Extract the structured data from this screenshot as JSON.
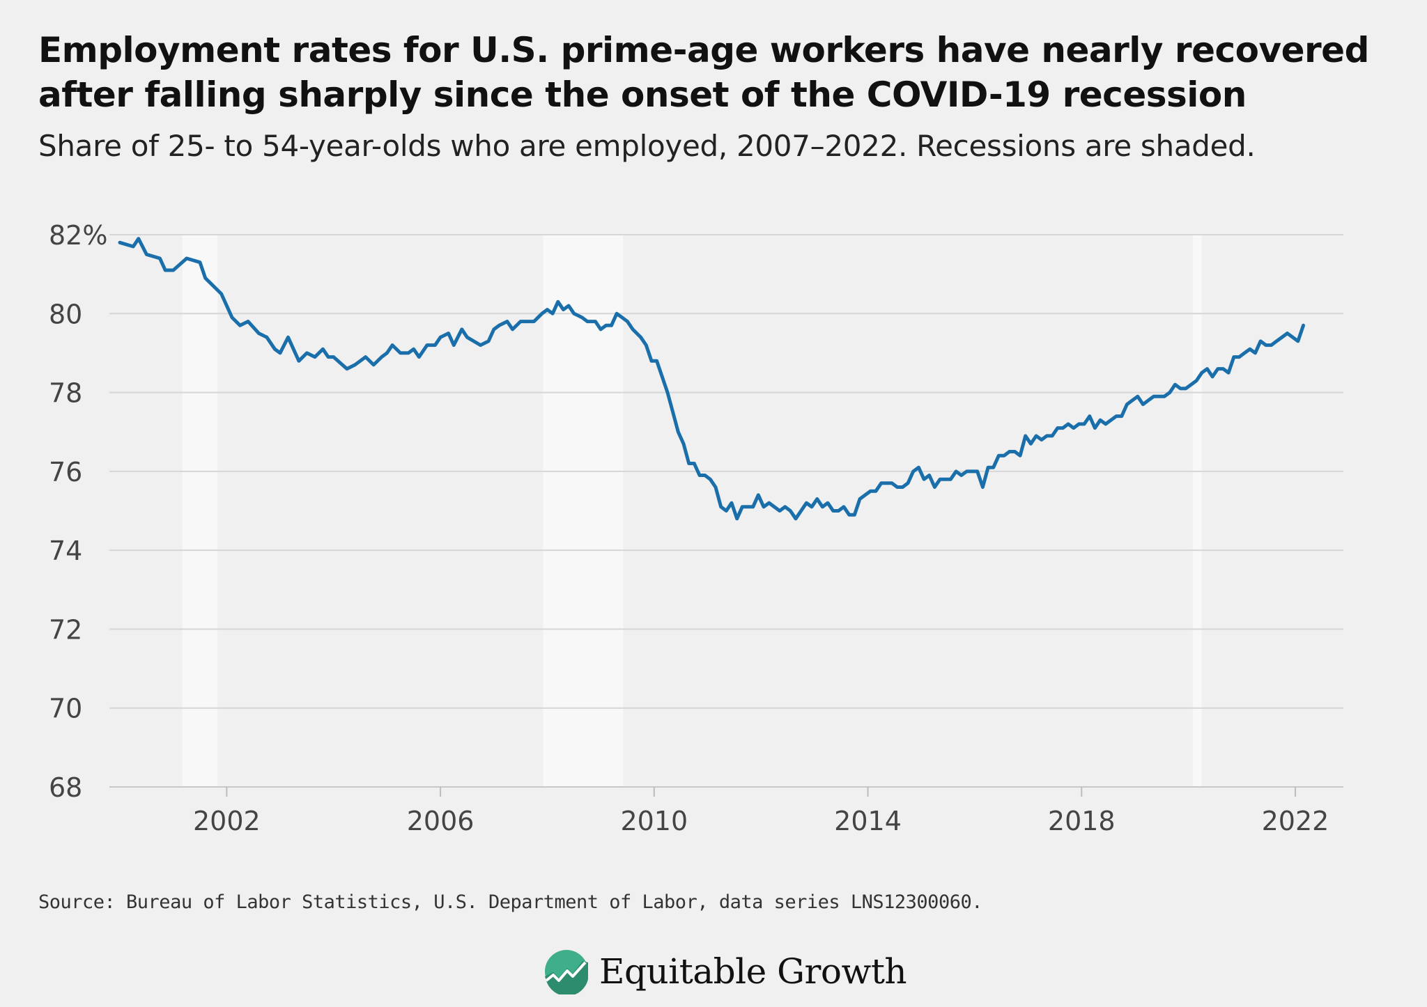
{
  "header": {
    "title": "Employment rates for U.S. prime-age workers have nearly recovered after falling sharply since the onset of the COVID-19 recession",
    "subtitle": "Share of 25- to 54-year-olds who are employed, 2007–2022. Recessions are shaded."
  },
  "footer": {
    "source": "Source: Bureau of Labor Statistics, U.S. Department of Labor, data series LNS12300060.",
    "logo_text": "Equitable Growth"
  },
  "colors": {
    "line": "#1a6fab",
    "grid": "#d6d6d6",
    "recession": "#f8f8f8",
    "background": "#f0f0f0",
    "tick_text": "#444444",
    "logo_green": "#3fae8a"
  },
  "chart_data": {
    "type": "line",
    "xlim": [
      2000.0,
      2022.9
    ],
    "ylim": [
      68,
      82
    ],
    "y_ticks": [
      {
        "value": 82,
        "label": "82%"
      },
      {
        "value": 80,
        "label": "80"
      },
      {
        "value": 78,
        "label": "78"
      },
      {
        "value": 76,
        "label": "76"
      },
      {
        "value": 74,
        "label": "74"
      },
      {
        "value": 72,
        "label": "72"
      },
      {
        "value": 70,
        "label": "70"
      },
      {
        "value": 68,
        "label": "68"
      }
    ],
    "x_ticks": [
      {
        "value": 2002,
        "label": "2002"
      },
      {
        "value": 2006,
        "label": "2006"
      },
      {
        "value": 2010,
        "label": "2010"
      },
      {
        "value": 2014,
        "label": "2014"
      },
      {
        "value": 2018,
        "label": "2018"
      },
      {
        "value": 2022,
        "label": "2022"
      }
    ],
    "grid": true,
    "recessions": [
      {
        "start": 2001.17,
        "end": 2001.83
      },
      {
        "start": 2007.92,
        "end": 2009.42
      },
      {
        "start": 2020.08,
        "end": 2020.25
      }
    ],
    "series": [
      {
        "points": [
          [
            2000.0,
            81.8
          ],
          [
            2000.25,
            81.7
          ],
          [
            2000.35,
            81.9
          ],
          [
            2000.5,
            81.5
          ],
          [
            2000.75,
            81.4
          ],
          [
            2000.85,
            81.1
          ],
          [
            2001.0,
            81.1
          ],
          [
            2001.25,
            81.4
          ],
          [
            2001.5,
            81.3
          ],
          [
            2001.6,
            80.9
          ],
          [
            2001.9,
            80.5
          ],
          [
            2002.0,
            80.2
          ],
          [
            2002.1,
            79.9
          ],
          [
            2002.25,
            79.7
          ],
          [
            2002.4,
            79.8
          ],
          [
            2002.6,
            79.5
          ],
          [
            2002.75,
            79.4
          ],
          [
            2002.9,
            79.1
          ],
          [
            2003.0,
            79.0
          ],
          [
            2003.15,
            79.4
          ],
          [
            2003.25,
            79.1
          ],
          [
            2003.35,
            78.8
          ],
          [
            2003.5,
            79.0
          ],
          [
            2003.65,
            78.9
          ],
          [
            2003.8,
            79.1
          ],
          [
            2003.9,
            78.9
          ],
          [
            2004.0,
            78.9
          ],
          [
            2004.25,
            78.6
          ],
          [
            2004.4,
            78.7
          ],
          [
            2004.6,
            78.9
          ],
          [
            2004.75,
            78.7
          ],
          [
            2004.9,
            78.9
          ],
          [
            2005.0,
            79.0
          ],
          [
            2005.1,
            79.2
          ],
          [
            2005.25,
            79.0
          ],
          [
            2005.4,
            79.0
          ],
          [
            2005.5,
            79.1
          ],
          [
            2005.6,
            78.9
          ],
          [
            2005.75,
            79.2
          ],
          [
            2005.9,
            79.2
          ],
          [
            2006.0,
            79.4
          ],
          [
            2006.15,
            79.5
          ],
          [
            2006.25,
            79.2
          ],
          [
            2006.4,
            79.6
          ],
          [
            2006.5,
            79.4
          ],
          [
            2006.75,
            79.2
          ],
          [
            2006.9,
            79.3
          ],
          [
            2007.0,
            79.6
          ],
          [
            2007.1,
            79.7
          ],
          [
            2007.25,
            79.8
          ],
          [
            2007.35,
            79.6
          ],
          [
            2007.5,
            79.8
          ],
          [
            2007.75,
            79.8
          ],
          [
            2007.9,
            80.0
          ],
          [
            2008.0,
            80.1
          ],
          [
            2008.1,
            80.0
          ],
          [
            2008.2,
            80.3
          ],
          [
            2008.3,
            80.1
          ],
          [
            2008.4,
            80.2
          ],
          [
            2008.5,
            80.0
          ],
          [
            2008.65,
            79.9
          ],
          [
            2008.75,
            79.8
          ],
          [
            2008.9,
            79.8
          ],
          [
            2009.0,
            79.6
          ],
          [
            2009.1,
            79.7
          ],
          [
            2009.2,
            79.7
          ],
          [
            2009.3,
            80.0
          ],
          [
            2009.4,
            79.9
          ],
          [
            2009.5,
            79.8
          ],
          [
            2009.6,
            79.6
          ],
          [
            2009.75,
            79.4
          ],
          [
            2009.85,
            79.2
          ],
          [
            2009.95,
            78.8
          ],
          [
            2010.05,
            78.8
          ],
          [
            2010.15,
            78.4
          ],
          [
            2010.25,
            78.0
          ],
          [
            2010.35,
            77.5
          ],
          [
            2010.45,
            77.0
          ],
          [
            2010.55,
            76.7
          ],
          [
            2010.65,
            76.2
          ],
          [
            2010.75,
            76.2
          ],
          [
            2010.85,
            75.9
          ],
          [
            2010.95,
            75.9
          ],
          [
            2011.05,
            75.8
          ],
          [
            2011.15,
            75.6
          ],
          [
            2011.25,
            75.1
          ],
          [
            2011.35,
            75.0
          ],
          [
            2011.45,
            75.2
          ],
          [
            2011.55,
            74.8
          ],
          [
            2011.65,
            75.1
          ],
          [
            2011.75,
            75.1
          ],
          [
            2011.85,
            75.1
          ],
          [
            2011.95,
            75.4
          ],
          [
            2012.05,
            75.1
          ],
          [
            2012.15,
            75.2
          ],
          [
            2012.25,
            75.1
          ],
          [
            2012.35,
            75.0
          ],
          [
            2012.45,
            75.1
          ],
          [
            2012.55,
            75.0
          ],
          [
            2012.65,
            74.8
          ],
          [
            2012.75,
            75.0
          ],
          [
            2012.85,
            75.2
          ],
          [
            2012.95,
            75.1
          ],
          [
            2013.05,
            75.3
          ],
          [
            2013.15,
            75.1
          ],
          [
            2013.25,
            75.2
          ],
          [
            2013.35,
            75.0
          ],
          [
            2013.45,
            75.0
          ],
          [
            2013.55,
            75.1
          ],
          [
            2013.65,
            74.9
          ],
          [
            2013.75,
            74.9
          ],
          [
            2013.85,
            75.3
          ],
          [
            2013.95,
            75.4
          ],
          [
            2014.05,
            75.5
          ],
          [
            2014.15,
            75.5
          ],
          [
            2014.25,
            75.7
          ],
          [
            2014.35,
            75.7
          ],
          [
            2014.45,
            75.7
          ],
          [
            2014.55,
            75.6
          ],
          [
            2014.65,
            75.6
          ],
          [
            2014.75,
            75.7
          ],
          [
            2014.85,
            76.0
          ],
          [
            2014.95,
            76.1
          ],
          [
            2015.05,
            75.8
          ],
          [
            2015.15,
            75.9
          ],
          [
            2015.25,
            75.6
          ],
          [
            2015.35,
            75.8
          ],
          [
            2015.45,
            75.8
          ],
          [
            2015.55,
            75.8
          ],
          [
            2015.65,
            76.0
          ],
          [
            2015.75,
            75.9
          ],
          [
            2015.85,
            76.0
          ],
          [
            2015.95,
            76.0
          ],
          [
            2016.05,
            76.0
          ],
          [
            2016.15,
            75.6
          ],
          [
            2016.25,
            76.1
          ],
          [
            2016.35,
            76.1
          ],
          [
            2016.45,
            76.4
          ],
          [
            2016.55,
            76.4
          ],
          [
            2016.65,
            76.5
          ],
          [
            2016.75,
            76.5
          ],
          [
            2016.85,
            76.4
          ],
          [
            2016.95,
            76.9
          ],
          [
            2017.05,
            76.7
          ],
          [
            2017.15,
            76.9
          ],
          [
            2017.25,
            76.8
          ],
          [
            2017.35,
            76.9
          ],
          [
            2017.45,
            76.9
          ],
          [
            2017.55,
            77.1
          ],
          [
            2017.65,
            77.1
          ],
          [
            2017.75,
            77.2
          ],
          [
            2017.85,
            77.1
          ],
          [
            2017.95,
            77.2
          ],
          [
            2018.05,
            77.2
          ],
          [
            2018.15,
            77.4
          ],
          [
            2018.25,
            77.1
          ],
          [
            2018.35,
            77.3
          ],
          [
            2018.45,
            77.2
          ],
          [
            2018.55,
            77.3
          ],
          [
            2018.65,
            77.4
          ],
          [
            2018.75,
            77.4
          ],
          [
            2018.85,
            77.7
          ],
          [
            2018.95,
            77.8
          ],
          [
            2019.05,
            77.9
          ],
          [
            2019.15,
            77.7
          ],
          [
            2019.25,
            77.8
          ],
          [
            2019.35,
            77.9
          ],
          [
            2019.45,
            77.9
          ],
          [
            2019.55,
            77.9
          ],
          [
            2019.65,
            78.0
          ],
          [
            2019.75,
            78.2
          ],
          [
            2019.85,
            78.1
          ],
          [
            2019.95,
            78.1
          ],
          [
            2020.05,
            78.2
          ],
          [
            2020.15,
            78.3
          ],
          [
            2020.25,
            78.5
          ],
          [
            2020.35,
            78.6
          ],
          [
            2020.45,
            78.4
          ],
          [
            2020.55,
            78.6
          ],
          [
            2020.65,
            78.6
          ],
          [
            2020.75,
            78.5
          ],
          [
            2020.85,
            78.9
          ],
          [
            2020.95,
            78.9
          ],
          [
            2021.05,
            79.0
          ],
          [
            2021.15,
            79.1
          ],
          [
            2021.25,
            79.0
          ],
          [
            2021.35,
            79.3
          ],
          [
            2021.45,
            79.2
          ],
          [
            2021.55,
            79.2
          ],
          [
            2021.65,
            79.3
          ],
          [
            2021.75,
            79.4
          ],
          [
            2021.85,
            79.5
          ],
          [
            2021.95,
            79.4
          ],
          [
            2022.05,
            79.3
          ],
          [
            2022.15,
            79.7
          ]
        ]
      }
    ]
  }
}
